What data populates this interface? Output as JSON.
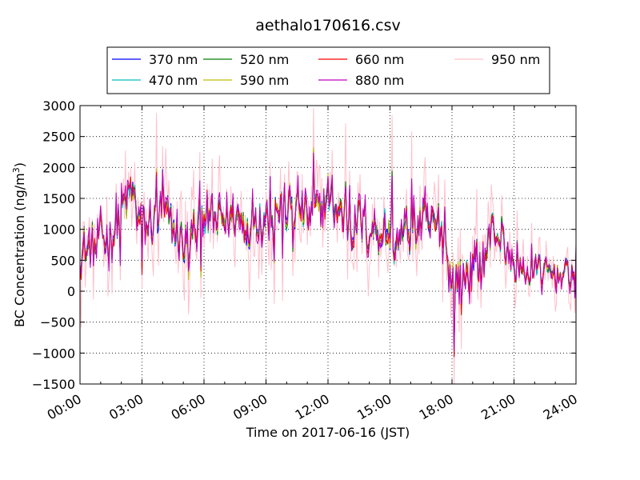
{
  "chart_data": {
    "type": "line",
    "title": "aethalo170616.csv",
    "xlabel": "Time on 2017-06-16 (JST)",
    "ylabel_main": "BC Concentration (ng/m",
    "ylabel_sup": "3",
    "ylabel_end": ")",
    "xlim": [
      "00:00",
      "24:00"
    ],
    "ylim": [
      -1500,
      3000
    ],
    "x_ticks": [
      "00:00",
      "03:00",
      "06:00",
      "09:00",
      "12:00",
      "15:00",
      "18:00",
      "21:00",
      "24:00"
    ],
    "y_ticks": [
      -1500,
      -1000,
      -500,
      0,
      500,
      1000,
      1500,
      2000,
      2500,
      3000
    ],
    "y_tick_labels": [
      "−1500",
      "−1000",
      "−500",
      "0",
      "500",
      "1000",
      "1500",
      "2000",
      "2500",
      "3000"
    ],
    "grid": true,
    "legend_position": "top",
    "anchors_hours": [
      0,
      0.5,
      1,
      1.5,
      2,
      2.5,
      3,
      3.5,
      4,
      4.5,
      5,
      5.5,
      6,
      6.5,
      7,
      7.5,
      8,
      8.5,
      9,
      9.5,
      10,
      10.5,
      11,
      11.5,
      12,
      12.5,
      13,
      13.5,
      14,
      14.5,
      15,
      15.5,
      16,
      16.5,
      17,
      17.5,
      18,
      18.5,
      19,
      19.5,
      20,
      20.5,
      21,
      21.5,
      22,
      22.5,
      23,
      23.5,
      24
    ],
    "anchors_values": [
      700,
      650,
      750,
      900,
      1300,
      1600,
      1000,
      1100,
      1250,
      1000,
      800,
      750,
      1400,
      1100,
      1150,
      1200,
      1100,
      1300,
      1200,
      1350,
      1300,
      1400,
      1200,
      1250,
      1550,
      1300,
      1100,
      1150,
      1000,
      1000,
      950,
      850,
      1000,
      1100,
      1000,
      1050,
      200,
      250,
      350,
      500,
      1000,
      800,
      400,
      250,
      350,
      250,
      300,
      250,
      350
    ],
    "series": [
      {
        "name": "370 nm",
        "color": "#0000ff"
      },
      {
        "name": "470 nm",
        "color": "#00bfbf"
      },
      {
        "name": "520 nm",
        "color": "#008000"
      },
      {
        "name": "590 nm",
        "color": "#bfbf00"
      },
      {
        "name": "660 nm",
        "color": "#ff0000"
      },
      {
        "name": "880 nm",
        "color": "#bf00bf"
      },
      {
        "name": "950 nm",
        "color": "#ffc0cb"
      }
    ]
  }
}
